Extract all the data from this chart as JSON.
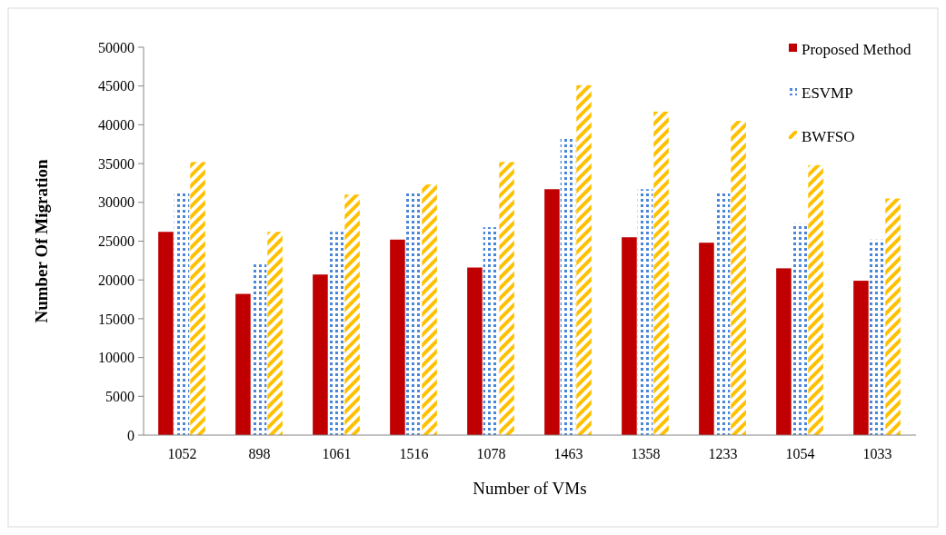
{
  "chart_data": {
    "type": "bar",
    "xlabel": "Number of VMs",
    "ylabel": "Number Of Migration",
    "categories": [
      "1052",
      "898",
      "1061",
      "1516",
      "1078",
      "1463",
      "1358",
      "1233",
      "1054",
      "1033"
    ],
    "series": [
      {
        "name": "Proposed Method",
        "color": "#c00000",
        "values": [
          26200,
          18200,
          20700,
          25200,
          21600,
          31700,
          25500,
          24800,
          21500,
          19900
        ]
      },
      {
        "name": "ESVMP",
        "color": "#4a86d8",
        "values": [
          31400,
          22000,
          26200,
          31400,
          26800,
          38300,
          31700,
          31200,
          27300,
          25200
        ]
      },
      {
        "name": "BWFSO",
        "color": "#ffc000",
        "values": [
          35200,
          26200,
          31000,
          32300,
          35200,
          45100,
          41700,
          40500,
          34800,
          30500
        ]
      }
    ],
    "ylim": [
      0,
      50000
    ],
    "yticks": [
      0,
      5000,
      10000,
      15000,
      20000,
      25000,
      30000,
      35000,
      40000,
      45000,
      50000
    ],
    "legend": "top right"
  }
}
